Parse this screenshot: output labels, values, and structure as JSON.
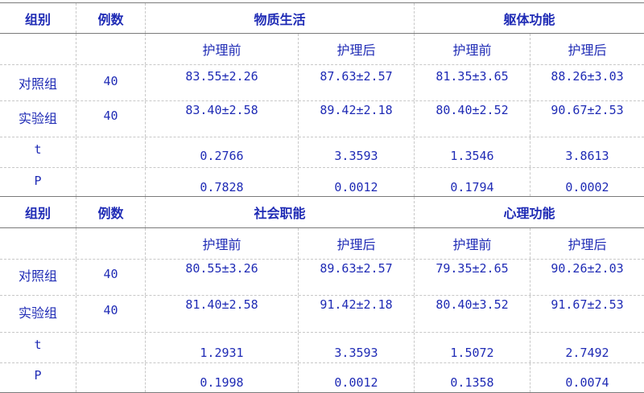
{
  "tables": [
    {
      "headers": [
        "组别",
        "例数",
        "物质生活",
        "躯体功能"
      ],
      "subheaders": [
        "护理前",
        "护理后",
        "护理前",
        "护理后"
      ],
      "rows": [
        {
          "group": "对照组",
          "n": "40",
          "values": [
            "83.55±2.26",
            "87.63±2.57",
            "81.35±3.65",
            "88.26±3.03"
          ]
        },
        {
          "group": "实验组",
          "n": "40",
          "values": [
            "83.40±2.58",
            "89.42±2.18",
            "80.40±2.52",
            "90.67±2.53"
          ]
        },
        {
          "group": "t",
          "n": "",
          "values": [
            "0.2766",
            "3.3593",
            "1.3546",
            "3.8613"
          ]
        },
        {
          "group": "P",
          "n": "",
          "values": [
            "0.7828",
            "0.0012",
            "0.1794",
            "0.0002"
          ]
        }
      ]
    },
    {
      "headers": [
        "组别",
        "例数",
        "社会职能",
        "心理功能"
      ],
      "subheaders": [
        "护理前",
        "护理后",
        "护理前",
        "护理后"
      ],
      "rows": [
        {
          "group": "对照组",
          "n": "40",
          "values": [
            "80.55±3.26",
            "89.63±2.57",
            "79.35±2.65",
            "90.26±2.03"
          ]
        },
        {
          "group": "实验组",
          "n": "40",
          "values": [
            "81.40±2.58",
            "91.42±2.18",
            "80.40±3.52",
            "91.67±2.53"
          ]
        },
        {
          "group": "t",
          "n": "",
          "values": [
            "1.2931",
            "3.3593",
            "1.5072",
            "2.7492"
          ]
        },
        {
          "group": "P",
          "n": "",
          "values": [
            "0.1998",
            "0.0012",
            "0.1358",
            "0.0074"
          ]
        }
      ]
    }
  ]
}
